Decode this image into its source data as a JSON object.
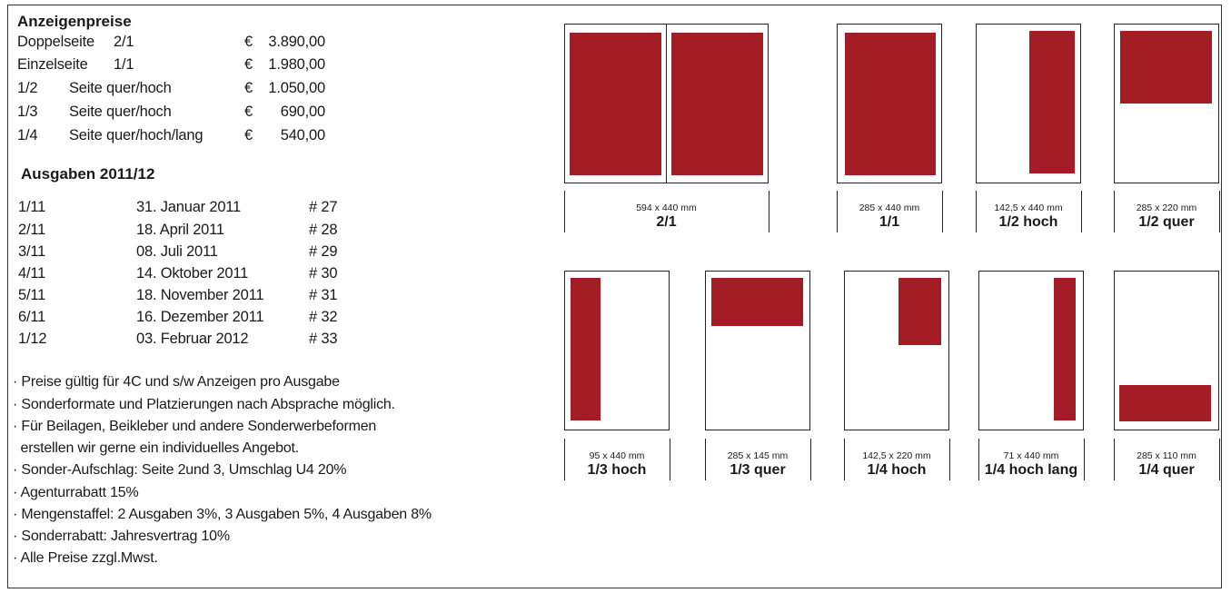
{
  "prices": {
    "title": "Anzeigenpreise",
    "rows": [
      {
        "a": "Doppelseite",
        "b": "2/1",
        "cur": "€",
        "amount": "3.890,00"
      },
      {
        "a": "Einzelseite",
        "b": "1/1",
        "cur": "€",
        "amount": "1.980,00"
      },
      {
        "a": "1/2",
        "b": "Seite quer/hoch",
        "cur": "€",
        "amount": "1.050,00"
      },
      {
        "a": "1/3",
        "b": "Seite quer/hoch",
        "cur": "€",
        "amount": "690,00"
      },
      {
        "a": "1/4",
        "b": "Seite quer/hoch/lang",
        "cur": "€",
        "amount": "540,00"
      }
    ]
  },
  "issues": {
    "title": "Ausgaben 2011/12",
    "rows": [
      {
        "issue": "1/11",
        "date": "31. Januar 2011",
        "num": "# 27"
      },
      {
        "issue": "2/11",
        "date": "18. April 2011",
        "num": "# 28"
      },
      {
        "issue": "3/11",
        "date": "08. Juli 2011",
        "num": "# 29"
      },
      {
        "issue": "4/11",
        "date": "14. Oktober 2011",
        "num": "# 30"
      },
      {
        "issue": "5/11",
        "date": "18. November 2011",
        "num": "# 31"
      },
      {
        "issue": "6/11",
        "date": "16. Dezember 2011",
        "num": "# 32"
      },
      {
        "issue": "1/12",
        "date": "03. Februar 2012",
        "num": "# 33"
      }
    ]
  },
  "notes": [
    "· Preise gültig für 4C und s/w Anzeigen pro Ausgabe",
    "· Sonderformate und Platzierungen nach Absprache möglich.",
    "· Für Beilagen, Beikleber und andere Sonderwerbeformen",
    "  erstellen wir gerne ein individuelles Angebot.",
    "· Sonder-Aufschlag: Seite 2und 3, Umschlag U4 20%",
    "· Agenturrabatt 15%",
    "· Mengenstaffel: 2 Ausgaben 3%, 3 Ausgaben 5%, 4 Ausgaben 8%",
    "· Sonderrabatt: Jahresvertrag 10%",
    "· Alle Preise zzgl.Mwst."
  ],
  "formats": [
    {
      "dims": "594 x 440 mm",
      "label": "2/1"
    },
    {
      "dims": "285 x 440 mm",
      "label": "1/1"
    },
    {
      "dims": "142,5 x 440 mm",
      "label": "1/2 hoch"
    },
    {
      "dims": "285 x 220 mm",
      "label": "1/2 quer"
    },
    {
      "dims": "95 x 440 mm",
      "label": "1/3 hoch"
    },
    {
      "dims": "285 x 145 mm",
      "label": "1/3 quer"
    },
    {
      "dims": "142,5 x 220 mm",
      "label": "1/4 hoch"
    },
    {
      "dims": "71 x 440 mm",
      "label": "1/4 hoch lang"
    },
    {
      "dims": "285 x 110 mm",
      "label": "1/4 quer"
    }
  ],
  "colors": {
    "ad_fill": "#a51d24"
  }
}
